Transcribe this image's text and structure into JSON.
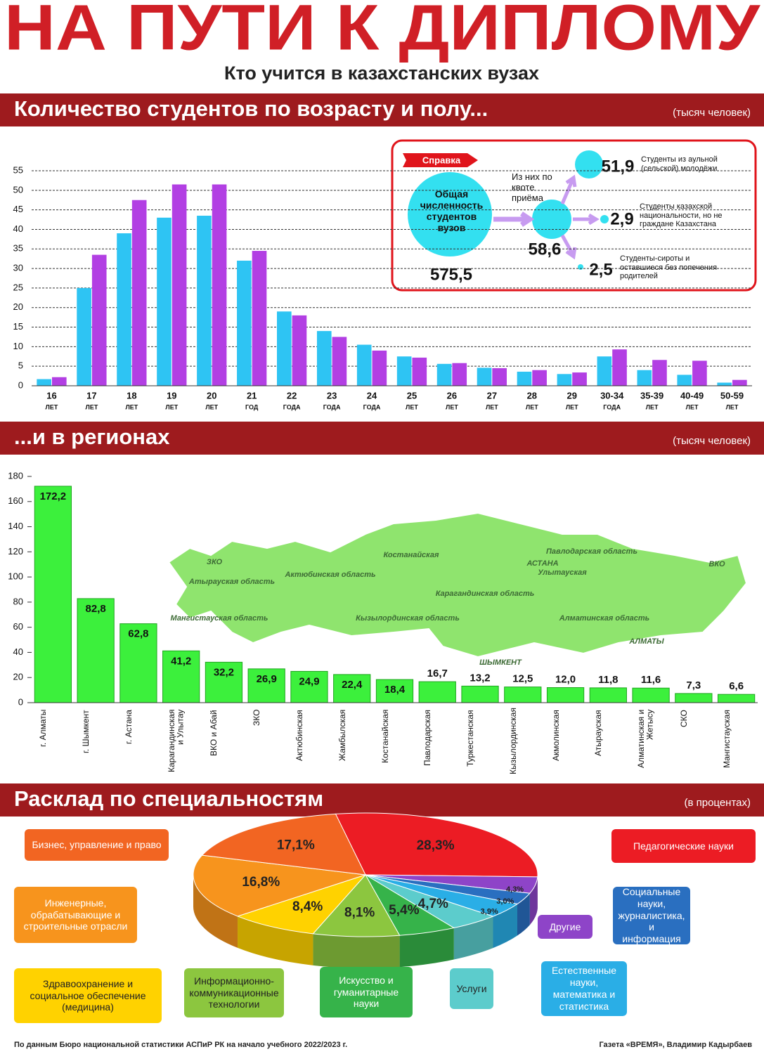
{
  "header": {
    "title": "НА ПУТИ К ДИПЛОМУ",
    "subtitle": "Кто учится в казахстанских вузах"
  },
  "chart_data": [
    {
      "type": "bar",
      "title": "Количество студентов по возрасту и полу...",
      "subtitle": "(тысяч человек)",
      "categories": [
        "16",
        "17",
        "18",
        "19",
        "20",
        "21",
        "22",
        "23",
        "24",
        "25",
        "26",
        "27",
        "28",
        "29",
        "30-34",
        "35-39",
        "40-49",
        "50-59"
      ],
      "category_units": [
        "ЛЕТ",
        "ЛЕТ",
        "ЛЕТ",
        "ЛЕТ",
        "ЛЕТ",
        "ГОД",
        "ГОДА",
        "ГОДА",
        "ГОДА",
        "ЛЕТ",
        "ЛЕТ",
        "ЛЕТ",
        "ЛЕТ",
        "ЛЕТ",
        "ГОДА",
        "ЛЕТ",
        "ЛЕТ",
        "ЛЕТ"
      ],
      "series": [
        {
          "color": "#2ec4f3",
          "values": [
            1.7,
            25,
            39,
            43,
            43.5,
            32,
            19,
            14,
            10.5,
            7.5,
            5.6,
            4.6,
            3.6,
            3,
            7.5,
            4,
            2.8,
            0.8
          ]
        },
        {
          "color": "#b23fe3",
          "values": [
            2.2,
            33.5,
            47.5,
            51.5,
            51.5,
            34.5,
            18,
            12.5,
            9,
            7.2,
            5.8,
            4.5,
            4,
            3.4,
            9.3,
            6.6,
            6.4,
            1.5
          ]
        }
      ],
      "ylim": [
        0,
        55
      ],
      "yticks": [
        0,
        5,
        10,
        15,
        20,
        25,
        30,
        35,
        40,
        45,
        50,
        55
      ],
      "grid": true
    },
    {
      "type": "bar",
      "title": "...и в регионах",
      "subtitle": "(тысяч человек)",
      "categories": [
        "г. Алматы",
        "г. Шымкент",
        "г. Астана",
        "Карагандинская и Улытау",
        "ВКО и Абай",
        "ЗКО",
        "Актюбинская",
        "Жамбылская",
        "Костанайская",
        "Павлодарская",
        "Туркестанская",
        "Кызылординская",
        "Акмолинская",
        "Атырауская",
        "Алматинская и Жетысу",
        "СКО",
        "Мангистауская"
      ],
      "values": [
        172.2,
        82.8,
        62.8,
        41.2,
        32.2,
        26.9,
        24.9,
        22.4,
        18.4,
        16.7,
        13.2,
        12.5,
        12.0,
        11.8,
        11.6,
        7.3,
        6.6
      ],
      "value_labels": [
        "172,2",
        "82,8",
        "62,8",
        "41,2",
        "32,2",
        "26,9",
        "24,9",
        "22,4",
        "18,4",
        "16,7",
        "13,2",
        "12,5",
        "12,0",
        "11,8",
        "11,6",
        "7,3",
        "6,6"
      ],
      "color": "#3cf03c",
      "ylim": [
        0,
        180
      ],
      "yticks": [
        0,
        20,
        40,
        60,
        80,
        100,
        120,
        140,
        160,
        180
      ],
      "grid": false
    },
    {
      "type": "pie",
      "title": "Расклад по специальностям",
      "subtitle": "(в процентах)",
      "categories": [
        "Педагогические науки",
        "Другие",
        "Социальные науки, журналистика, и информация",
        "Естественные науки, математика и статистика",
        "Услуги",
        "Искусство и гуманитарные науки",
        "Информационно-коммуникационные технологии",
        "Здравоохранение и социальное обеспечение (медицина)",
        "Инженерные, обрабатывающие и строительные отрасли",
        "Бизнес, управление и право"
      ],
      "values": [
        28.3,
        4.3,
        3.0,
        3.9,
        4.7,
        5.4,
        8.1,
        8.4,
        16.8,
        17.1
      ],
      "value_labels": [
        "28,3%",
        "4,3%",
        "3,0%",
        "3,9%",
        "4,7%",
        "5,4%",
        "8,1%",
        "8,4%",
        "16,8%",
        "17,1%"
      ],
      "colors": [
        "#ec1c24",
        "#8e44c8",
        "#2a6fc0",
        "#2aaee6",
        "#5ccccc",
        "#36b34a",
        "#8cc63f",
        "#ffd200",
        "#f7941d",
        "#f26522"
      ]
    }
  ],
  "reference": {
    "tag": "Справка",
    "total_label": "Общая численность студентов вузов",
    "total": "575,5",
    "quota_label": "Из них по квоте приёма",
    "quota": "58,6",
    "items": [
      {
        "value": "51,9",
        "label": "Студенты из аульной (сельской) молодёжи"
      },
      {
        "value": "2,9",
        "label": "Студенты казахской национальности, но не граждане Казахстана"
      },
      {
        "value": "2,5",
        "label": "Студенты-сироты и оставшиеся без попечения родителей"
      }
    ]
  },
  "map_labels": [
    "ЗКО",
    "Атырауская область",
    "Актюбинская область",
    "Мангистауская область",
    "Костанайская",
    "Карагандинская область",
    "Кызылординская область",
    "АСТАНА",
    "Павлодарская область",
    "Улытауская",
    "Алматинская область",
    "ВКО",
    "АЛМАТЫ",
    "ШЫМКЕНТ"
  ],
  "footer": {
    "source": "По данным Бюро национальной статистики АСПиР РК на начало учебного 2022/2023 г.",
    "credit": "Газета «ВРЕМЯ», Владимир Кадырбаев"
  }
}
